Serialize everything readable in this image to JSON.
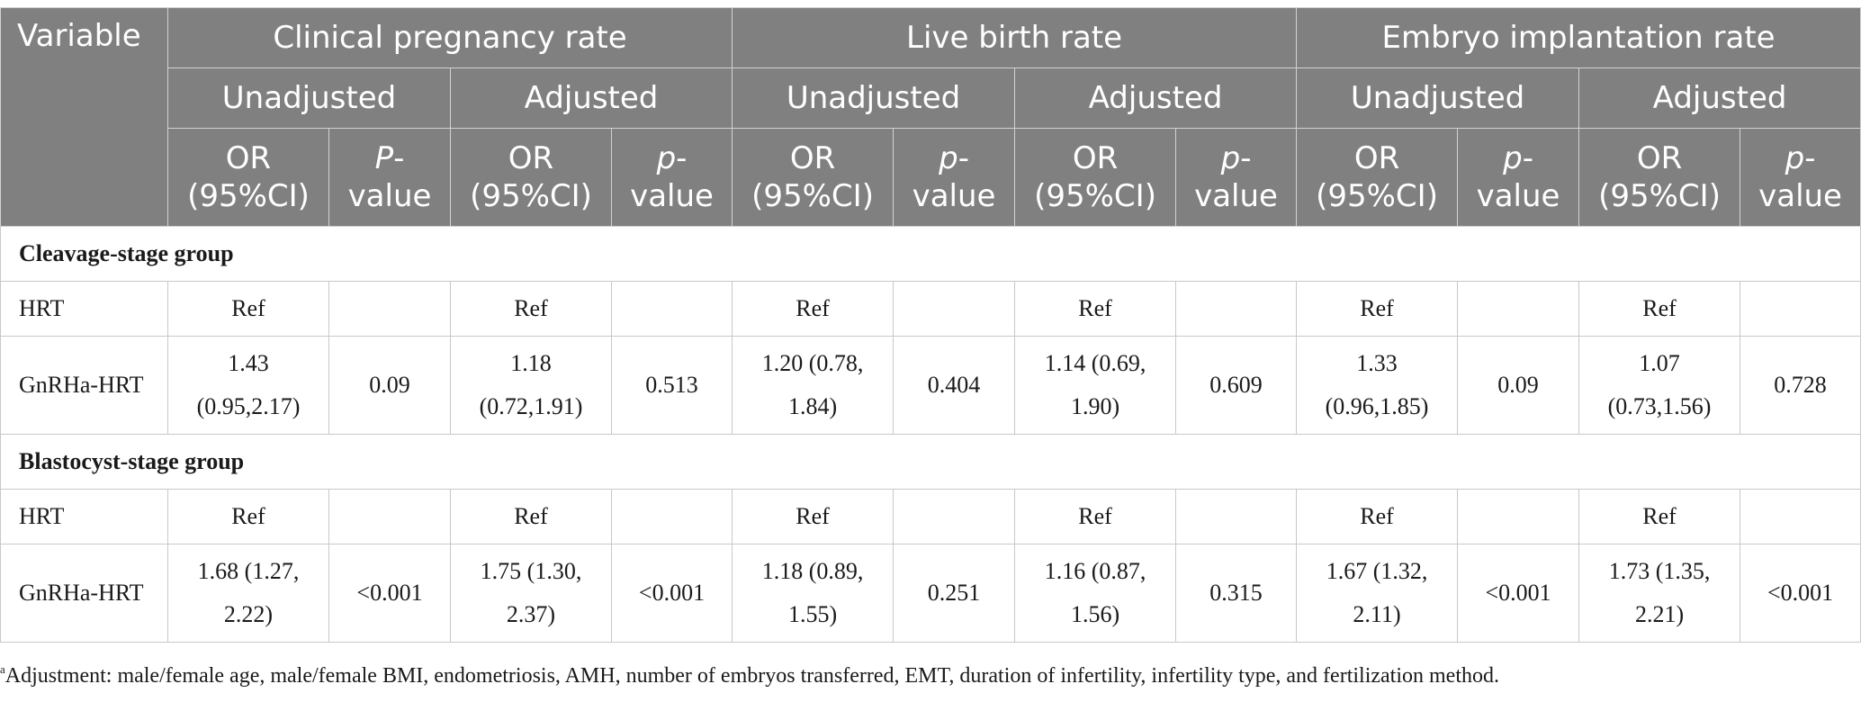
{
  "header": {
    "variable": "Variable",
    "groups": [
      "Clinical pregnancy rate",
      "Live birth rate",
      "Embryo implantation rate"
    ],
    "sub": [
      "Unadjusted",
      "Adjusted"
    ],
    "or_label": "OR (95%CI)",
    "p_labels": {
      "cpr_unadj": [
        "P",
        "-value"
      ],
      "other": [
        "p",
        "-value"
      ]
    }
  },
  "sections": [
    {
      "title": "Cleavage-stage group",
      "rows": [
        {
          "label": "HRT",
          "cells": [
            "Ref",
            "",
            "Ref",
            "",
            "Ref",
            "",
            "Ref",
            "",
            "Ref",
            "",
            "Ref",
            ""
          ]
        },
        {
          "label": "GnRHa-HRT",
          "cells": [
            "1.43 (0.95,2.17)",
            "0.09",
            "1.18 (0.72,1.91)",
            "0.513",
            "1.20 (0.78, 1.84)",
            "0.404",
            "1.14 (0.69, 1.90)",
            "0.609",
            "1.33 (0.96,1.85)",
            "0.09",
            "1.07 (0.73,1.56)",
            "0.728"
          ]
        }
      ]
    },
    {
      "title": "Blastocyst-stage group",
      "rows": [
        {
          "label": "HRT",
          "cells": [
            "Ref",
            "",
            "Ref",
            "",
            "Ref",
            "",
            "Ref",
            "",
            "Ref",
            "",
            "Ref",
            ""
          ]
        },
        {
          "label": "GnRHa-HRT",
          "cells": [
            "1.68 (1.27, 2.22)",
            "<0.001",
            "1.75 (1.30, 2.37)",
            "<0.001",
            "1.18 (0.89, 1.55)",
            "0.251",
            "1.16 (0.87, 1.56)",
            "0.315",
            "1.67 (1.32, 2.11)",
            "<0.001",
            "1.73 (1.35, 2.21)",
            "<0.001"
          ]
        }
      ]
    }
  ],
  "footnote": {
    "marker": "a",
    "text": "Adjustment: male/female age, male/female BMI, endometriosis, AMH, number of embryos transferred, EMT, duration of infertility, infertility type, and fertilization method."
  }
}
